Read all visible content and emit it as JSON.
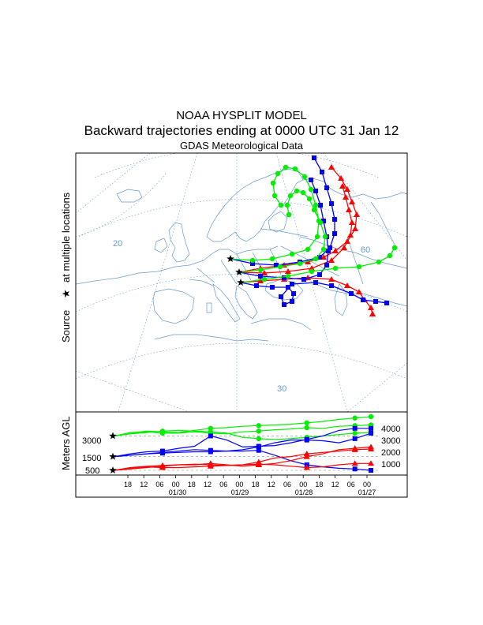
{
  "header": {
    "model": "NOAA HYSPLIT MODEL",
    "subtitle": "Backward trajectories ending at 0000 UTC 31 Jan 12",
    "data_source": "GDAS Meteorological Data"
  },
  "side_label": {
    "prefix": "Source",
    "suffix": "at multiple locations"
  },
  "colors": {
    "red": "#ff0000",
    "blue": "#0000ff",
    "green": "#00ee00",
    "coast": "#6699cc",
    "grid": "#6699cc"
  },
  "chart_data": [
    {
      "type": "map",
      "name": "trajectory-map",
      "latitude_labels": [
        "20",
        "60",
        "30"
      ],
      "markers": {
        "red": "triangle",
        "blue": "square",
        "green": "circle",
        "source": "star"
      },
      "series": [
        {
          "name": "red-traj-1",
          "color": "red",
          "marker": "triangle"
        },
        {
          "name": "red-traj-2",
          "color": "red",
          "marker": "triangle"
        },
        {
          "name": "red-traj-3",
          "color": "red",
          "marker": "triangle"
        },
        {
          "name": "blue-traj-1",
          "color": "blue",
          "marker": "square"
        },
        {
          "name": "blue-traj-2",
          "color": "blue",
          "marker": "square"
        },
        {
          "name": "blue-traj-3",
          "color": "blue",
          "marker": "square"
        },
        {
          "name": "green-traj-1",
          "color": "green",
          "marker": "circle"
        },
        {
          "name": "green-traj-2",
          "color": "green",
          "marker": "circle"
        },
        {
          "name": "green-traj-3",
          "color": "green",
          "marker": "circle"
        }
      ]
    },
    {
      "type": "line",
      "name": "height-profile",
      "ylabel": "Meters AGL",
      "source_heights": [
        "3000",
        "1500",
        "500"
      ],
      "right_ticks": [
        "4000",
        "3000",
        "2000",
        "1000"
      ],
      "x_tick_labels": [
        "18",
        "12",
        "06",
        "00",
        "18",
        "12",
        "06",
        "00",
        "18",
        "12",
        "06",
        "00",
        "18",
        "12",
        "06",
        "00"
      ],
      "date_labels": [
        "01/30",
        "01/29",
        "01/28",
        "01/27"
      ],
      "x_hours_back": [
        -6,
        -12,
        -18,
        -24,
        -30,
        -36,
        -42,
        -48,
        -54,
        -60,
        -66,
        -72,
        -78,
        -84,
        -90,
        -96
      ],
      "series": [
        {
          "color": "green",
          "values": [
            3000,
            3200,
            3350,
            3300,
            3250,
            3400,
            3550,
            3600,
            3700,
            3750,
            3800,
            3850,
            3950,
            4050,
            4200,
            4300,
            4400
          ]
        },
        {
          "color": "green",
          "values": [
            3000,
            3250,
            3300,
            3200,
            3200,
            3300,
            3200,
            3150,
            3300,
            3350,
            3450,
            3500,
            3600,
            3550,
            3700,
            3750,
            3800
          ]
        },
        {
          "color": "green",
          "values": [
            3000,
            3150,
            3250,
            3350,
            3400,
            3350,
            3300,
            3200,
            2900,
            2800,
            2750,
            2800,
            2900,
            3000,
            3100,
            3200,
            3250
          ]
        },
        {
          "color": "blue",
          "values": [
            1500,
            1700,
            1850,
            1900,
            2100,
            2250,
            3000,
            2700,
            2200,
            2250,
            2300,
            2500,
            2750,
            3000,
            3400,
            3550,
            3550
          ]
        },
        {
          "color": "blue",
          "values": [
            1500,
            1600,
            1700,
            1800,
            1900,
            2000,
            1950,
            1900,
            2000,
            2200,
            2500,
            2700,
            2700,
            2650,
            2500,
            2800,
            3200
          ]
        },
        {
          "color": "blue",
          "values": [
            1500,
            1600,
            1700,
            1750,
            1800,
            1850,
            1850,
            1900,
            1900,
            1950,
            1600,
            1200,
            900,
            750,
            650,
            600,
            500
          ]
        },
        {
          "color": "red",
          "values": [
            500,
            600,
            700,
            800,
            900,
            900,
            1000,
            900,
            800,
            900,
            1000,
            1200,
            1500,
            1700,
            2000,
            2100,
            2200
          ]
        },
        {
          "color": "red",
          "values": [
            500,
            700,
            800,
            850,
            900,
            950,
            900,
            850,
            900,
            1100,
            1400,
            1500,
            1700,
            1800,
            1900,
            2000,
            2050
          ]
        },
        {
          "color": "red",
          "values": [
            500,
            650,
            750,
            700,
            700,
            750,
            800,
            850,
            900,
            950,
            900,
            800,
            700,
            750,
            900,
            1000,
            1000
          ]
        }
      ]
    }
  ]
}
